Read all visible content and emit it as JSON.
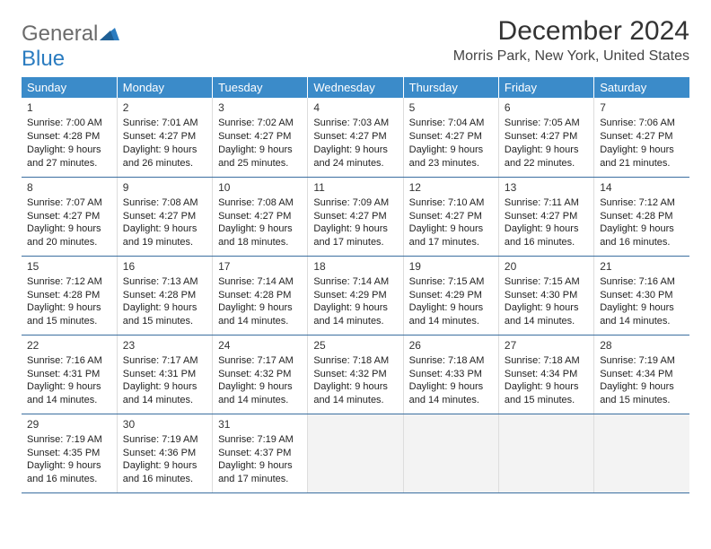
{
  "logo": {
    "text1": "General",
    "text2": "Blue"
  },
  "title": "December 2024",
  "location": "Morris Park, New York, United States",
  "colors": {
    "header_bg": "#3b8bc9",
    "header_text": "#ffffff",
    "row_border": "#3b6fa0",
    "cell_border": "#dddddd",
    "empty_bg": "#f3f3f3",
    "logo_gray": "#6b6b6b",
    "logo_blue": "#2b7cc0"
  },
  "weekdays": [
    "Sunday",
    "Monday",
    "Tuesday",
    "Wednesday",
    "Thursday",
    "Friday",
    "Saturday"
  ],
  "weeks": [
    [
      {
        "day": "1",
        "sunrise": "Sunrise: 7:00 AM",
        "sunset": "Sunset: 4:28 PM",
        "daylight": "Daylight: 9 hours and 27 minutes."
      },
      {
        "day": "2",
        "sunrise": "Sunrise: 7:01 AM",
        "sunset": "Sunset: 4:27 PM",
        "daylight": "Daylight: 9 hours and 26 minutes."
      },
      {
        "day": "3",
        "sunrise": "Sunrise: 7:02 AM",
        "sunset": "Sunset: 4:27 PM",
        "daylight": "Daylight: 9 hours and 25 minutes."
      },
      {
        "day": "4",
        "sunrise": "Sunrise: 7:03 AM",
        "sunset": "Sunset: 4:27 PM",
        "daylight": "Daylight: 9 hours and 24 minutes."
      },
      {
        "day": "5",
        "sunrise": "Sunrise: 7:04 AM",
        "sunset": "Sunset: 4:27 PM",
        "daylight": "Daylight: 9 hours and 23 minutes."
      },
      {
        "day": "6",
        "sunrise": "Sunrise: 7:05 AM",
        "sunset": "Sunset: 4:27 PM",
        "daylight": "Daylight: 9 hours and 22 minutes."
      },
      {
        "day": "7",
        "sunrise": "Sunrise: 7:06 AM",
        "sunset": "Sunset: 4:27 PM",
        "daylight": "Daylight: 9 hours and 21 minutes."
      }
    ],
    [
      {
        "day": "8",
        "sunrise": "Sunrise: 7:07 AM",
        "sunset": "Sunset: 4:27 PM",
        "daylight": "Daylight: 9 hours and 20 minutes."
      },
      {
        "day": "9",
        "sunrise": "Sunrise: 7:08 AM",
        "sunset": "Sunset: 4:27 PM",
        "daylight": "Daylight: 9 hours and 19 minutes."
      },
      {
        "day": "10",
        "sunrise": "Sunrise: 7:08 AM",
        "sunset": "Sunset: 4:27 PM",
        "daylight": "Daylight: 9 hours and 18 minutes."
      },
      {
        "day": "11",
        "sunrise": "Sunrise: 7:09 AM",
        "sunset": "Sunset: 4:27 PM",
        "daylight": "Daylight: 9 hours and 17 minutes."
      },
      {
        "day": "12",
        "sunrise": "Sunrise: 7:10 AM",
        "sunset": "Sunset: 4:27 PM",
        "daylight": "Daylight: 9 hours and 17 minutes."
      },
      {
        "day": "13",
        "sunrise": "Sunrise: 7:11 AM",
        "sunset": "Sunset: 4:27 PM",
        "daylight": "Daylight: 9 hours and 16 minutes."
      },
      {
        "day": "14",
        "sunrise": "Sunrise: 7:12 AM",
        "sunset": "Sunset: 4:28 PM",
        "daylight": "Daylight: 9 hours and 16 minutes."
      }
    ],
    [
      {
        "day": "15",
        "sunrise": "Sunrise: 7:12 AM",
        "sunset": "Sunset: 4:28 PM",
        "daylight": "Daylight: 9 hours and 15 minutes."
      },
      {
        "day": "16",
        "sunrise": "Sunrise: 7:13 AM",
        "sunset": "Sunset: 4:28 PM",
        "daylight": "Daylight: 9 hours and 15 minutes."
      },
      {
        "day": "17",
        "sunrise": "Sunrise: 7:14 AM",
        "sunset": "Sunset: 4:28 PM",
        "daylight": "Daylight: 9 hours and 14 minutes."
      },
      {
        "day": "18",
        "sunrise": "Sunrise: 7:14 AM",
        "sunset": "Sunset: 4:29 PM",
        "daylight": "Daylight: 9 hours and 14 minutes."
      },
      {
        "day": "19",
        "sunrise": "Sunrise: 7:15 AM",
        "sunset": "Sunset: 4:29 PM",
        "daylight": "Daylight: 9 hours and 14 minutes."
      },
      {
        "day": "20",
        "sunrise": "Sunrise: 7:15 AM",
        "sunset": "Sunset: 4:30 PM",
        "daylight": "Daylight: 9 hours and 14 minutes."
      },
      {
        "day": "21",
        "sunrise": "Sunrise: 7:16 AM",
        "sunset": "Sunset: 4:30 PM",
        "daylight": "Daylight: 9 hours and 14 minutes."
      }
    ],
    [
      {
        "day": "22",
        "sunrise": "Sunrise: 7:16 AM",
        "sunset": "Sunset: 4:31 PM",
        "daylight": "Daylight: 9 hours and 14 minutes."
      },
      {
        "day": "23",
        "sunrise": "Sunrise: 7:17 AM",
        "sunset": "Sunset: 4:31 PM",
        "daylight": "Daylight: 9 hours and 14 minutes."
      },
      {
        "day": "24",
        "sunrise": "Sunrise: 7:17 AM",
        "sunset": "Sunset: 4:32 PM",
        "daylight": "Daylight: 9 hours and 14 minutes."
      },
      {
        "day": "25",
        "sunrise": "Sunrise: 7:18 AM",
        "sunset": "Sunset: 4:32 PM",
        "daylight": "Daylight: 9 hours and 14 minutes."
      },
      {
        "day": "26",
        "sunrise": "Sunrise: 7:18 AM",
        "sunset": "Sunset: 4:33 PM",
        "daylight": "Daylight: 9 hours and 14 minutes."
      },
      {
        "day": "27",
        "sunrise": "Sunrise: 7:18 AM",
        "sunset": "Sunset: 4:34 PM",
        "daylight": "Daylight: 9 hours and 15 minutes."
      },
      {
        "day": "28",
        "sunrise": "Sunrise: 7:19 AM",
        "sunset": "Sunset: 4:34 PM",
        "daylight": "Daylight: 9 hours and 15 minutes."
      }
    ],
    [
      {
        "day": "29",
        "sunrise": "Sunrise: 7:19 AM",
        "sunset": "Sunset: 4:35 PM",
        "daylight": "Daylight: 9 hours and 16 minutes."
      },
      {
        "day": "30",
        "sunrise": "Sunrise: 7:19 AM",
        "sunset": "Sunset: 4:36 PM",
        "daylight": "Daylight: 9 hours and 16 minutes."
      },
      {
        "day": "31",
        "sunrise": "Sunrise: 7:19 AM",
        "sunset": "Sunset: 4:37 PM",
        "daylight": "Daylight: 9 hours and 17 minutes."
      },
      null,
      null,
      null,
      null
    ]
  ]
}
